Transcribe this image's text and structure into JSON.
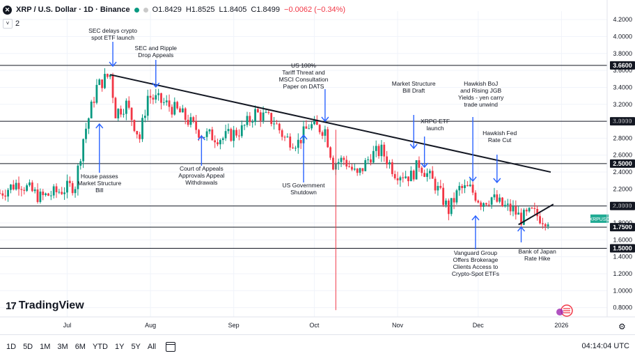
{
  "header": {
    "symbol": "XRP / U.S. Dollar · 1D · Binance",
    "open": "O1.8429",
    "high": "H1.8525",
    "low": "L1.8405",
    "close": "C1.8499",
    "change": "−0.0062 (−0.34%)",
    "sub_count": "2"
  },
  "brand": {
    "name": "TradingView"
  },
  "toolbar": {
    "timeframes": [
      "1D",
      "5D",
      "1M",
      "3M",
      "6M",
      "YTD",
      "1Y",
      "5Y",
      "All"
    ],
    "clock": "04:14:04 UTC"
  },
  "colors": {
    "up": "#089981",
    "down": "#f23645",
    "price_tag": "#22ab94",
    "arrow": "#2962ff"
  },
  "chart_data": {
    "type": "candlestick",
    "symbol_tag": "XRPUSD",
    "last_price": 1.8499,
    "y_ticks": [
      "4.2000",
      "4.0000",
      "3.8000",
      "3.6000",
      "3.4000",
      "3.2000",
      "3.0000",
      "2.8000",
      "2.6000",
      "2.4000",
      "2.2000",
      "2.0000",
      "1.8000",
      "1.6000",
      "1.4000",
      "1.2000",
      "1.0000",
      "0.8000"
    ],
    "y_tick_values": [
      4.2,
      4.0,
      3.8,
      3.6,
      3.4,
      3.2,
      3.0,
      2.8,
      2.6,
      2.4,
      2.2,
      2.0,
      1.8,
      1.6,
      1.4,
      1.2,
      1.0,
      0.8
    ],
    "ylim": [
      0.69,
      4.3
    ],
    "x_labels": [
      {
        "label": "Jul",
        "day": 30
      },
      {
        "label": "Aug",
        "day": 61
      },
      {
        "label": "Sep",
        "day": 92
      },
      {
        "label": "Oct",
        "day": 122
      },
      {
        "label": "Nov",
        "day": 153
      },
      {
        "label": "Dec",
        "day": 183
      },
      {
        "label": "2026",
        "day": 214
      }
    ],
    "day_range": [
      5,
      231
    ],
    "levels": [
      {
        "value": 3.66,
        "label": "3.6600"
      },
      {
        "value": 3.0,
        "label": "3.0000"
      },
      {
        "value": 2.5,
        "label": "2.5000"
      },
      {
        "value": 2.0,
        "label": "2.0000"
      },
      {
        "value": 1.75,
        "label": "1.7500"
      },
      {
        "value": 1.5,
        "label": "1.5000"
      }
    ],
    "trendlines": [
      {
        "from": [
          46,
          3.55
        ],
        "to": [
          210,
          2.4
        ]
      },
      {
        "from": [
          198,
          1.78
        ],
        "to": [
          211,
          2.02
        ]
      }
    ],
    "anchors": [
      [
        5,
        2.15
      ],
      [
        12,
        2.28
      ],
      [
        20,
        2.1
      ],
      [
        25,
        2.15
      ],
      [
        33,
        2.25
      ],
      [
        36,
        2.8
      ],
      [
        41,
        3.4
      ],
      [
        44,
        3.5
      ],
      [
        46,
        3.55
      ],
      [
        48,
        3.1
      ],
      [
        52,
        3.2
      ],
      [
        57,
        2.8
      ],
      [
        60,
        3.3
      ],
      [
        67,
        3.2
      ],
      [
        72,
        3.1
      ],
      [
        80,
        2.85
      ],
      [
        88,
        2.8
      ],
      [
        95,
        2.9
      ],
      [
        100,
        3.1
      ],
      [
        107,
        3.0
      ],
      [
        111,
        2.8
      ],
      [
        116,
        2.75
      ],
      [
        120,
        2.95
      ],
      [
        126,
        2.9
      ],
      [
        129,
        2.5
      ],
      [
        133,
        2.55
      ],
      [
        138,
        2.35
      ],
      [
        143,
        2.6
      ],
      [
        147,
        2.65
      ],
      [
        152,
        2.4
      ],
      [
        158,
        2.35
      ],
      [
        161,
        2.5
      ],
      [
        167,
        2.25
      ],
      [
        172,
        1.95
      ],
      [
        176,
        2.2
      ],
      [
        180,
        2.2
      ],
      [
        184,
        2.05
      ],
      [
        188,
        2.1
      ],
      [
        192,
        2.0
      ],
      [
        196,
        1.95
      ],
      [
        199,
        1.85
      ],
      [
        203,
        1.92
      ],
      [
        207,
        1.85
      ],
      [
        209,
        1.85
      ]
    ],
    "annotations": [
      {
        "lines": [
          "SEC delays crypto",
          "spot ETF launch"
        ],
        "day": 47,
        "tx": 47,
        "ty": 47,
        "arrow": "down",
        "y1": 60,
        "y2": 95
      },
      {
        "lines": [
          "SEC and Ripple",
          "Drop Appeals"
        ],
        "day": 63,
        "tx": 63,
        "ty": 72,
        "arrow": "down",
        "y1": 86,
        "y2": 125
      },
      {
        "lines": [
          "US 100%",
          "Tariff Threat and",
          "MSCI Consultation",
          "Paper on DATS"
        ],
        "day": 126,
        "tx": 118,
        "ty": 97,
        "arrow": "down",
        "y1": 128,
        "y2": 174
      },
      {
        "lines": [
          "Market Structure",
          "Bill Draft"
        ],
        "day": 159,
        "tx": 159,
        "ty": 123,
        "arrow": "down",
        "y1": 165,
        "y2": 213
      },
      {
        "lines": [
          "XRPC ETF",
          "launch"
        ],
        "day": 163,
        "tx": 167,
        "ty": 177,
        "arrow": "down",
        "y1": 196,
        "y2": 240
      },
      {
        "lines": [
          "Hawkish BoJ",
          "and Rising JGB",
          "Yields - yen carry",
          "trade unwind"
        ],
        "day": 181,
        "tx": 184,
        "ty": 123,
        "arrow": "down",
        "y1": 168,
        "y2": 260
      },
      {
        "lines": [
          "Hawkish Fed",
          "Rate Cut"
        ],
        "day": 190,
        "tx": 191,
        "ty": 194,
        "arrow": "down",
        "y1": 222,
        "y2": 262
      },
      {
        "lines": [
          "House passes",
          "Market Structure",
          "Bill"
        ],
        "day": 42,
        "tx": 42,
        "ty": 256,
        "arrow": "up",
        "y1": 248,
        "y2": 178
      },
      {
        "lines": [
          "Court of Appeals",
          "Approvals Appeal",
          "Withdrawals"
        ],
        "day": 80,
        "tx": 80,
        "ty": 245,
        "arrow": "up",
        "y1": 238,
        "y2": 195
      },
      {
        "lines": [
          "US Government",
          "Shutdown"
        ],
        "day": 118,
        "tx": 118,
        "ty": 269,
        "arrow": "up",
        "y1": 262,
        "y2": 194
      },
      {
        "lines": [
          "Vanguard Group",
          "Offers Brokerage",
          "Clients Access to",
          "Crypto-Spot ETFs"
        ],
        "day": 182,
        "tx": 182,
        "ty": 366,
        "arrow": "up",
        "y1": 358,
        "y2": 310
      },
      {
        "lines": [
          "Bank of Japan",
          "Rate Hike"
        ],
        "day": 199,
        "tx": 205,
        "ty": 364,
        "arrow": "up",
        "y1": 348,
        "y2": 326
      }
    ]
  }
}
